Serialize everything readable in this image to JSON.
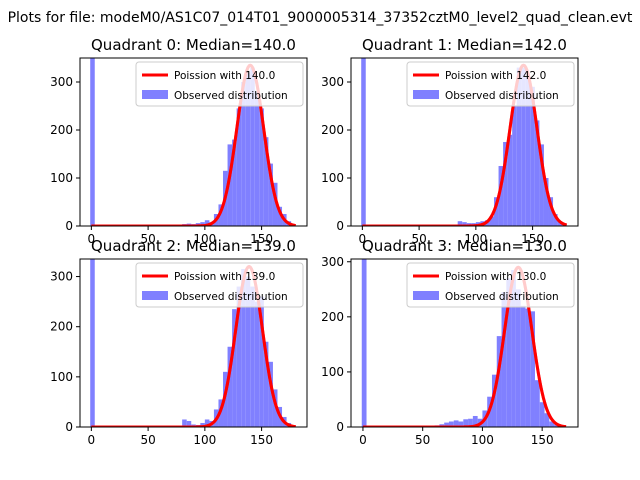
{
  "figure": {
    "suptitle": "Plots for file: modeM0/AS1C07_014T01_9000005314_37352cztM0_level2_quad_clean.evt"
  },
  "chart_data": [
    {
      "type": "bar",
      "title": "Quadrant 0: Median=140.0",
      "xlim": [
        -10,
        190
      ],
      "ylim": [
        0,
        350
      ],
      "xticks": [
        0,
        50,
        100,
        150
      ],
      "yticks": [
        0,
        100,
        200,
        300
      ],
      "grid": false,
      "legend_position": "top-right",
      "series": [
        {
          "name": "Observed distribution",
          "kind": "histogram",
          "color": "#8080ff",
          "bin_width": 4,
          "bins": [
            {
              "x": -1,
              "y": 350
            },
            {
              "x": 76,
              "y": 3
            },
            {
              "x": 80,
              "y": 4
            },
            {
              "x": 84,
              "y": 5
            },
            {
              "x": 88,
              "y": 4
            },
            {
              "x": 92,
              "y": 6
            },
            {
              "x": 96,
              "y": 8
            },
            {
              "x": 100,
              "y": 12
            },
            {
              "x": 104,
              "y": 8
            },
            {
              "x": 108,
              "y": 25
            },
            {
              "x": 112,
              "y": 45
            },
            {
              "x": 116,
              "y": 115
            },
            {
              "x": 120,
              "y": 170
            },
            {
              "x": 124,
              "y": 180
            },
            {
              "x": 128,
              "y": 245
            },
            {
              "x": 132,
              "y": 300
            },
            {
              "x": 136,
              "y": 320
            },
            {
              "x": 140,
              "y": 330
            },
            {
              "x": 144,
              "y": 280
            },
            {
              "x": 148,
              "y": 245
            },
            {
              "x": 152,
              "y": 185
            },
            {
              "x": 156,
              "y": 130
            },
            {
              "x": 160,
              "y": 90
            },
            {
              "x": 164,
              "y": 40
            },
            {
              "x": 168,
              "y": 25
            },
            {
              "x": 172,
              "y": 10
            },
            {
              "x": 176,
              "y": 3
            }
          ]
        },
        {
          "name": "Poission with 140.0",
          "kind": "poisson_curve",
          "color": "#ff0000",
          "mean": 140.0,
          "peak": 335,
          "x_range": [
            0,
            180
          ]
        }
      ]
    },
    {
      "type": "bar",
      "title": "Quadrant 1: Median=142.0",
      "xlim": [
        -10,
        190
      ],
      "ylim": [
        0,
        350
      ],
      "xticks": [
        0,
        50,
        100,
        150
      ],
      "yticks": [
        0,
        100,
        200,
        300
      ],
      "grid": false,
      "legend_position": "top-right",
      "series": [
        {
          "name": "Observed distribution",
          "kind": "histogram",
          "color": "#8080ff",
          "bin_width": 4,
          "bins": [
            {
              "x": -1,
              "y": 350
            },
            {
              "x": 76,
              "y": 3
            },
            {
              "x": 80,
              "y": 3
            },
            {
              "x": 84,
              "y": 10
            },
            {
              "x": 88,
              "y": 8
            },
            {
              "x": 92,
              "y": 6
            },
            {
              "x": 96,
              "y": 6
            },
            {
              "x": 100,
              "y": 8
            },
            {
              "x": 104,
              "y": 10
            },
            {
              "x": 108,
              "y": 12
            },
            {
              "x": 112,
              "y": 20
            },
            {
              "x": 116,
              "y": 60
            },
            {
              "x": 120,
              "y": 125
            },
            {
              "x": 124,
              "y": 175
            },
            {
              "x": 128,
              "y": 190
            },
            {
              "x": 132,
              "y": 250
            },
            {
              "x": 136,
              "y": 330
            },
            {
              "x": 140,
              "y": 330
            },
            {
              "x": 144,
              "y": 310
            },
            {
              "x": 148,
              "y": 290
            },
            {
              "x": 152,
              "y": 220
            },
            {
              "x": 156,
              "y": 170
            },
            {
              "x": 160,
              "y": 100
            },
            {
              "x": 164,
              "y": 60
            },
            {
              "x": 168,
              "y": 25
            },
            {
              "x": 172,
              "y": 10
            },
            {
              "x": 176,
              "y": 3
            }
          ]
        },
        {
          "name": "Poission with 142.0",
          "kind": "poisson_curve",
          "color": "#ff0000",
          "mean": 142.0,
          "peak": 335,
          "x_range": [
            0,
            180
          ]
        }
      ]
    },
    {
      "type": "bar",
      "title": "Quadrant 2: Median=139.0",
      "xlim": [
        -10,
        190
      ],
      "ylim": [
        0,
        335
      ],
      "xticks": [
        0,
        50,
        100,
        150
      ],
      "yticks": [
        0,
        100,
        200,
        300
      ],
      "grid": false,
      "legend_position": "top-right",
      "series": [
        {
          "name": "Observed distribution",
          "kind": "histogram",
          "color": "#8080ff",
          "bin_width": 4,
          "bins": [
            {
              "x": -1,
              "y": 335
            },
            {
              "x": 76,
              "y": 3
            },
            {
              "x": 80,
              "y": 15
            },
            {
              "x": 84,
              "y": 12
            },
            {
              "x": 88,
              "y": 5
            },
            {
              "x": 92,
              "y": 4
            },
            {
              "x": 96,
              "y": 8
            },
            {
              "x": 100,
              "y": 15
            },
            {
              "x": 104,
              "y": 12
            },
            {
              "x": 108,
              "y": 35
            },
            {
              "x": 112,
              "y": 55
            },
            {
              "x": 116,
              "y": 110
            },
            {
              "x": 120,
              "y": 160
            },
            {
              "x": 124,
              "y": 235
            },
            {
              "x": 128,
              "y": 280
            },
            {
              "x": 132,
              "y": 315
            },
            {
              "x": 136,
              "y": 300
            },
            {
              "x": 140,
              "y": 280
            },
            {
              "x": 144,
              "y": 250
            },
            {
              "x": 148,
              "y": 260
            },
            {
              "x": 152,
              "y": 170
            },
            {
              "x": 156,
              "y": 130
            },
            {
              "x": 160,
              "y": 75
            },
            {
              "x": 164,
              "y": 40
            },
            {
              "x": 168,
              "y": 20
            },
            {
              "x": 172,
              "y": 8
            },
            {
              "x": 176,
              "y": 3
            }
          ]
        },
        {
          "name": "Poission with 139.0",
          "kind": "poisson_curve",
          "color": "#ff0000",
          "mean": 139.0,
          "peak": 320,
          "x_range": [
            0,
            180
          ]
        }
      ]
    },
    {
      "type": "bar",
      "title": "Quadrant 3: Median=130.0",
      "xlim": [
        -10,
        180
      ],
      "ylim": [
        0,
        305
      ],
      "xticks": [
        0,
        50,
        100,
        150
      ],
      "yticks": [
        0,
        100,
        200,
        300
      ],
      "grid": false,
      "legend_position": "top-right",
      "series": [
        {
          "name": "Observed distribution",
          "kind": "histogram",
          "color": "#8080ff",
          "bin_width": 4,
          "bins": [
            {
              "x": -1,
              "y": 305
            },
            {
              "x": 60,
              "y": 3
            },
            {
              "x": 64,
              "y": 5
            },
            {
              "x": 68,
              "y": 8
            },
            {
              "x": 72,
              "y": 10
            },
            {
              "x": 76,
              "y": 12
            },
            {
              "x": 80,
              "y": 10
            },
            {
              "x": 84,
              "y": 14
            },
            {
              "x": 88,
              "y": 15
            },
            {
              "x": 92,
              "y": 20
            },
            {
              "x": 96,
              "y": 15
            },
            {
              "x": 100,
              "y": 30
            },
            {
              "x": 104,
              "y": 55
            },
            {
              "x": 108,
              "y": 95
            },
            {
              "x": 112,
              "y": 165
            },
            {
              "x": 116,
              "y": 245
            },
            {
              "x": 120,
              "y": 270
            },
            {
              "x": 124,
              "y": 285
            },
            {
              "x": 128,
              "y": 250
            },
            {
              "x": 132,
              "y": 220
            },
            {
              "x": 136,
              "y": 215
            },
            {
              "x": 140,
              "y": 210
            },
            {
              "x": 144,
              "y": 85
            },
            {
              "x": 148,
              "y": 45
            },
            {
              "x": 152,
              "y": 25
            },
            {
              "x": 156,
              "y": 10
            },
            {
              "x": 160,
              "y": 5
            },
            {
              "x": 164,
              "y": 2
            }
          ]
        },
        {
          "name": "Poission with 130.0",
          "kind": "poisson_curve",
          "color": "#ff0000",
          "mean": 130.0,
          "peak": 290,
          "x_range": [
            0,
            170
          ]
        }
      ]
    }
  ]
}
